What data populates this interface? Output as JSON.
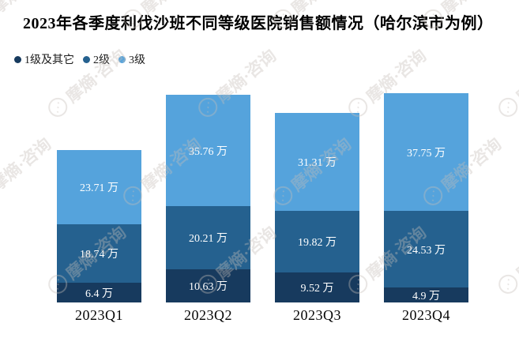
{
  "watermark": {
    "text": "摩熵·咨询",
    "logo_glyph": "⋰"
  },
  "chart_data": {
    "type": "bar",
    "stacked": true,
    "title": "2023年各季度利伐沙班不同等级医院销售额情况（哈尔滨市为例）",
    "categories": [
      "2023Q1",
      "2023Q2",
      "2023Q3",
      "2023Q4"
    ],
    "series": [
      {
        "name": "1级及其它",
        "color": "#173A5E",
        "values": [
          6.4,
          10.63,
          9.52,
          4.9
        ]
      },
      {
        "name": "2级",
        "color": "#25618F",
        "values": [
          18.74,
          20.21,
          19.82,
          24.53
        ]
      },
      {
        "name": "3级",
        "color": "#55A3DC",
        "values": [
          23.71,
          35.76,
          31.31,
          37.75
        ]
      }
    ],
    "unit": "万",
    "value_labels": [
      [
        "6.4 万",
        "10.63 万",
        "9.52 万",
        "4.9 万"
      ],
      [
        "18.74 万",
        "20.21 万",
        "19.82 万",
        "24.53 万"
      ],
      [
        "23.71 万",
        "35.76 万",
        "31.31 万",
        "37.75 万"
      ]
    ],
    "legend_position": "top-left",
    "grid": false,
    "y_axis_visible": false,
    "xlabel": "",
    "ylabel": ""
  }
}
